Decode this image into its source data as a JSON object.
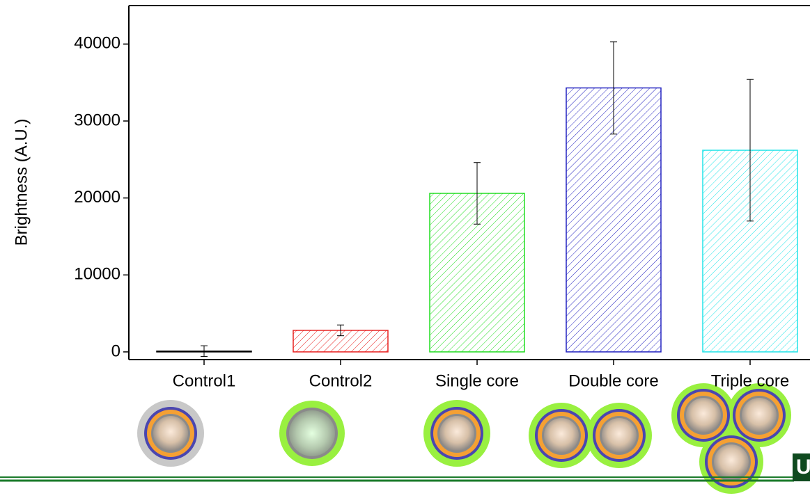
{
  "chart_data": {
    "type": "bar",
    "y_label": "Brightness (A.U.)",
    "categories": [
      "Control1",
      "Control2",
      "Single core",
      "Double core",
      "Triple core"
    ],
    "values": [
      100,
      2800,
      20600,
      34300,
      26200
    ],
    "errors": [
      700,
      700,
      4000,
      6000,
      9200
    ],
    "colors": [
      "#000000",
      "#e8201f",
      "#22dd22",
      "#2222c0",
      "#22e4e8"
    ],
    "ylim": [
      -1000,
      45000
    ],
    "yticks": [
      0,
      10000,
      20000,
      30000,
      40000
    ],
    "hatch": true
  },
  "logo": "U"
}
